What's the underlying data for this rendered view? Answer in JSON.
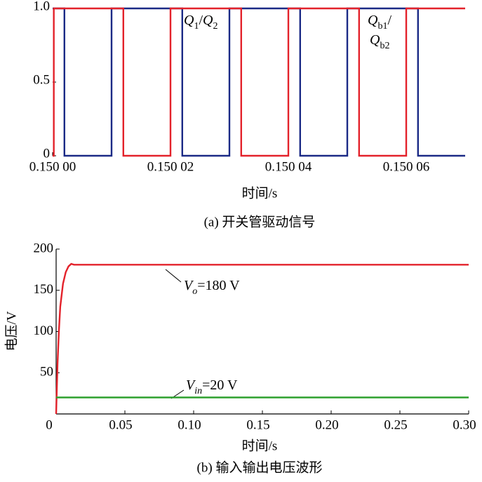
{
  "chart_data": [
    {
      "type": "line",
      "x_label": "时间/s",
      "caption": "(a) 开关管驱动信号",
      "xlim": [
        0.15,
        0.15007
      ],
      "ylim": [
        0,
        1
      ],
      "xticks": [
        {
          "value": 0.15,
          "label": "0.150 00"
        },
        {
          "value": 0.15002,
          "label": "0.150 02"
        },
        {
          "value": 0.15004,
          "label": "0.150 04"
        },
        {
          "value": 0.15006,
          "label": "0.150 06"
        }
      ],
      "yticks": [
        0,
        0.5,
        {
          "value": 1,
          "label": "1.0"
        }
      ],
      "annotations": [
        [
          "Q",
          "1",
          "/",
          "Q",
          "2"
        ],
        [
          "Q",
          "b1",
          "/",
          "Q",
          "b2"
        ]
      ],
      "series": [
        {
          "color": "#1b2a86",
          "x": [
            0.15,
            0.150002,
            0.150002,
            0.15001,
            0.15001,
            0.150022,
            0.150022,
            0.15003,
            0.15003,
            0.150042,
            0.150042,
            0.15005,
            0.15005,
            0.150062,
            0.150062,
            0.15007
          ],
          "values": [
            1,
            1,
            0,
            0,
            1,
            1,
            0,
            0,
            1,
            1,
            0,
            0,
            1,
            1,
            0,
            0
          ]
        },
        {
          "color": "#e3222b",
          "x": [
            0.15,
            0.1500002,
            0.1500002,
            0.150012,
            0.150012,
            0.15002,
            0.15002,
            0.150032,
            0.150032,
            0.15004,
            0.15004,
            0.150052,
            0.150052,
            0.15006,
            0.15006,
            0.15007
          ],
          "values": [
            0,
            0,
            1,
            1,
            0,
            0,
            1,
            1,
            0,
            0,
            1,
            1,
            0,
            0,
            1,
            1
          ]
        }
      ]
    },
    {
      "type": "line",
      "x_label": "时间/s",
      "y_label": "电压/V",
      "caption": "(b) 输入输出电压波形",
      "xlim": [
        0,
        0.3
      ],
      "ylim": [
        0,
        200
      ],
      "xticks": [
        0,
        0.05,
        {
          "value": 0.1,
          "label": "0.10"
        },
        0.15,
        {
          "value": 0.2,
          "label": "0.20"
        },
        0.25,
        {
          "value": 0.3,
          "label": "0.30"
        }
      ],
      "yticks": [
        50,
        100,
        150,
        200
      ],
      "annotations": [
        [
          "V",
          "o",
          "=180 V"
        ],
        [
          "V",
          "in",
          "=20 V"
        ]
      ],
      "series": [
        {
          "color": "#e3222b",
          "x": [
            0,
            0.001,
            0.002,
            0.003,
            0.005,
            0.007,
            0.009,
            0.011,
            0.013,
            0.3
          ],
          "values": [
            0,
            60,
            100,
            130,
            158,
            172,
            179,
            182,
            181,
            181
          ]
        },
        {
          "color": "#2ea02e",
          "x": [
            0,
            0.3
          ],
          "values": [
            20,
            20
          ]
        }
      ]
    }
  ]
}
